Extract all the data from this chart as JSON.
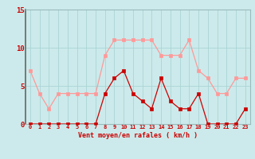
{
  "title": "",
  "xlabel": "Vent moyen/en rafales ( km/h )",
  "ylabel": "",
  "background_color": "#cceaeb",
  "grid_color": "#aad4d5",
  "hours": [
    0,
    1,
    2,
    3,
    4,
    5,
    6,
    7,
    8,
    9,
    10,
    11,
    12,
    13,
    14,
    15,
    16,
    17,
    18,
    19,
    20,
    21,
    22,
    23
  ],
  "vent_moyen": [
    0,
    0,
    0,
    0,
    0,
    0,
    0,
    0,
    4,
    6,
    7,
    4,
    3,
    2,
    6,
    3,
    2,
    2,
    4,
    0,
    0,
    0,
    0,
    2
  ],
  "vent_rafales": [
    7,
    4,
    2,
    4,
    4,
    4,
    4,
    4,
    9,
    11,
    11,
    11,
    11,
    11,
    9,
    9,
    9,
    11,
    7,
    6,
    4,
    4,
    6,
    6
  ],
  "line_color_moyen": "#cc0000",
  "line_color_rafales": "#ff9999",
  "marker_size": 2.5,
  "ylim": [
    0,
    15
  ],
  "yticks": [
    0,
    5,
    10,
    15
  ],
  "xlim": [
    -0.5,
    23.5
  ],
  "xlabel_fontsize": 6.0,
  "xtick_fontsize": 5.0,
  "ytick_fontsize": 6.5
}
